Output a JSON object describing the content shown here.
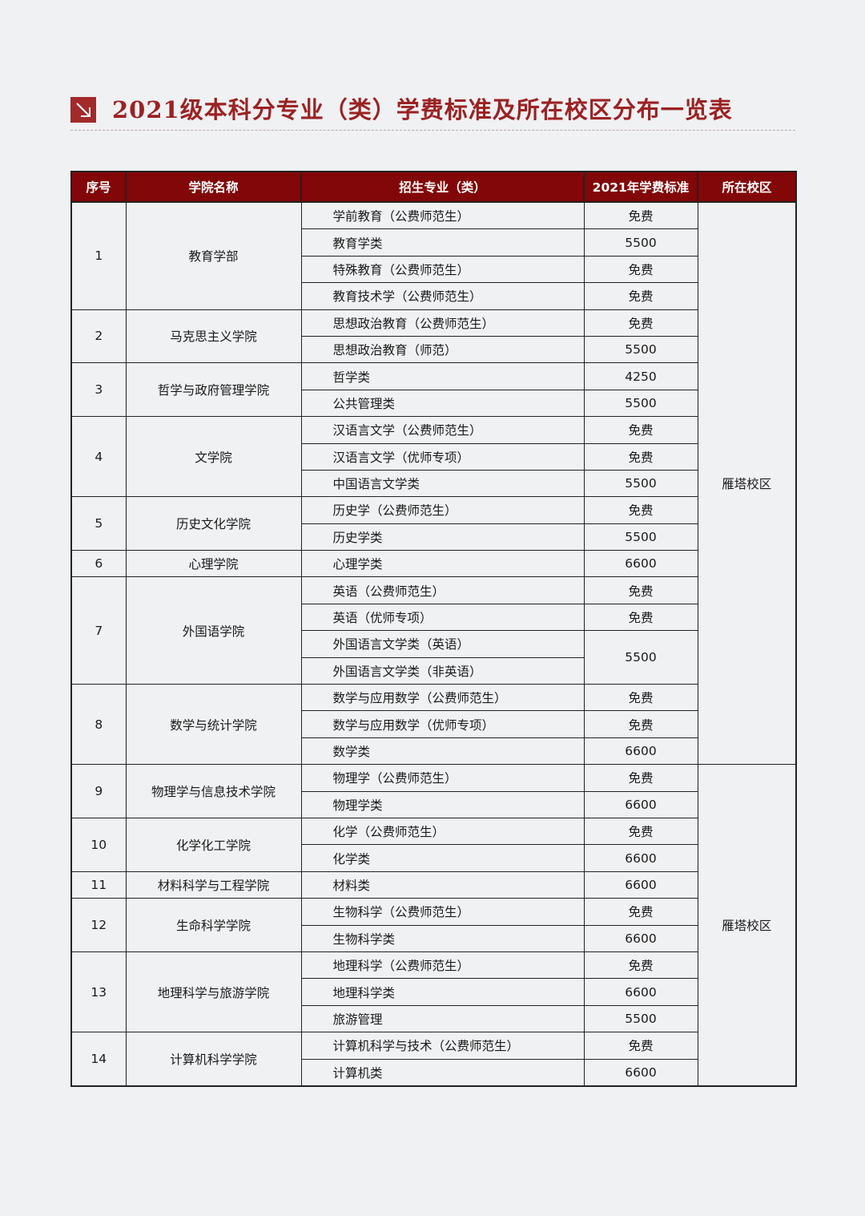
{
  "title": "2021级本科分专业（类）学费标准及所在校区分布一览表",
  "title_icon": "arrow-down-right-icon",
  "colors": {
    "accent": "#9b2223",
    "header_bg": "#820708",
    "background": "#f0f1f3"
  },
  "table": {
    "headers": [
      "序号",
      "学院名称",
      "招生专业（类）",
      "2021年学费标准",
      "所在校区"
    ],
    "campuses": [
      {
        "name": "雁塔校区",
        "colleges": [
          {
            "no": "1",
            "name": "教育学部",
            "majors": [
              {
                "name": "学前教育（公费师范生）",
                "fee": "免费"
              },
              {
                "name": "教育学类",
                "fee": "5500"
              },
              {
                "name": "特殊教育（公费师范生）",
                "fee": "免费"
              },
              {
                "name": "教育技术学（公费师范生）",
                "fee": "免费"
              }
            ]
          },
          {
            "no": "2",
            "name": "马克思主义学院",
            "majors": [
              {
                "name": "思想政治教育（公费师范生）",
                "fee": "免费"
              },
              {
                "name": "思想政治教育（师范）",
                "fee": "5500"
              }
            ]
          },
          {
            "no": "3",
            "name": "哲学与政府管理学院",
            "majors": [
              {
                "name": "哲学类",
                "fee": "4250"
              },
              {
                "name": "公共管理类",
                "fee": "5500"
              }
            ]
          },
          {
            "no": "4",
            "name": "文学院",
            "majors": [
              {
                "name": "汉语言文学（公费师范生）",
                "fee": "免费"
              },
              {
                "name": "汉语言文学（优师专项）",
                "fee": "免费"
              },
              {
                "name": "中国语言文学类",
                "fee": "5500"
              }
            ]
          },
          {
            "no": "5",
            "name": "历史文化学院",
            "majors": [
              {
                "name": "历史学（公费师范生）",
                "fee": "免费"
              },
              {
                "name": "历史学类",
                "fee": "5500"
              }
            ]
          },
          {
            "no": "6",
            "name": "心理学院",
            "majors": [
              {
                "name": "心理学类",
                "fee": "6600"
              }
            ]
          },
          {
            "no": "7",
            "name": "外国语学院",
            "majors": [
              {
                "name": "英语（公费师范生）",
                "fee": "免费"
              },
              {
                "name": "英语（优师专项）",
                "fee": "免费"
              },
              {
                "name": "外国语言文学类（英语）",
                "fee": "5500",
                "fee_shared_with_next": true
              },
              {
                "name": "外国语言文学类（非英语）"
              }
            ]
          },
          {
            "no": "8",
            "name": "数学与统计学院",
            "majors": [
              {
                "name": "数学与应用数学（公费师范生）",
                "fee": "免费"
              },
              {
                "name": "数学与应用数学（优师专项）",
                "fee": "免费"
              },
              {
                "name": "数学类",
                "fee": "6600"
              }
            ]
          }
        ]
      },
      {
        "name": "雁塔校区",
        "colleges": [
          {
            "no": "9",
            "name": "物理学与信息技术学院",
            "majors": [
              {
                "name": "物理学（公费师范生）",
                "fee": "免费"
              },
              {
                "name": "物理学类",
                "fee": "6600"
              }
            ]
          },
          {
            "no": "10",
            "name": "化学化工学院",
            "majors": [
              {
                "name": "化学（公费师范生）",
                "fee": "免费"
              },
              {
                "name": "化学类",
                "fee": "6600"
              }
            ]
          },
          {
            "no": "11",
            "name": "材料科学与工程学院",
            "majors": [
              {
                "name": "材料类",
                "fee": "6600"
              }
            ]
          },
          {
            "no": "12",
            "name": "生命科学学院",
            "majors": [
              {
                "name": "生物科学（公费师范生）",
                "fee": "免费"
              },
              {
                "name": "生物科学类",
                "fee": "6600"
              }
            ]
          },
          {
            "no": "13",
            "name": "地理科学与旅游学院",
            "majors": [
              {
                "name": "地理科学（公费师范生）",
                "fee": "免费"
              },
              {
                "name": "地理科学类",
                "fee": "6600"
              },
              {
                "name": "旅游管理",
                "fee": "5500"
              }
            ]
          },
          {
            "no": "14",
            "name": "计算机科学学院",
            "majors": [
              {
                "name": "计算机科学与技术（公费师范生）",
                "fee": "免费"
              },
              {
                "name": "计算机类",
                "fee": "6600"
              }
            ]
          }
        ]
      }
    ]
  }
}
